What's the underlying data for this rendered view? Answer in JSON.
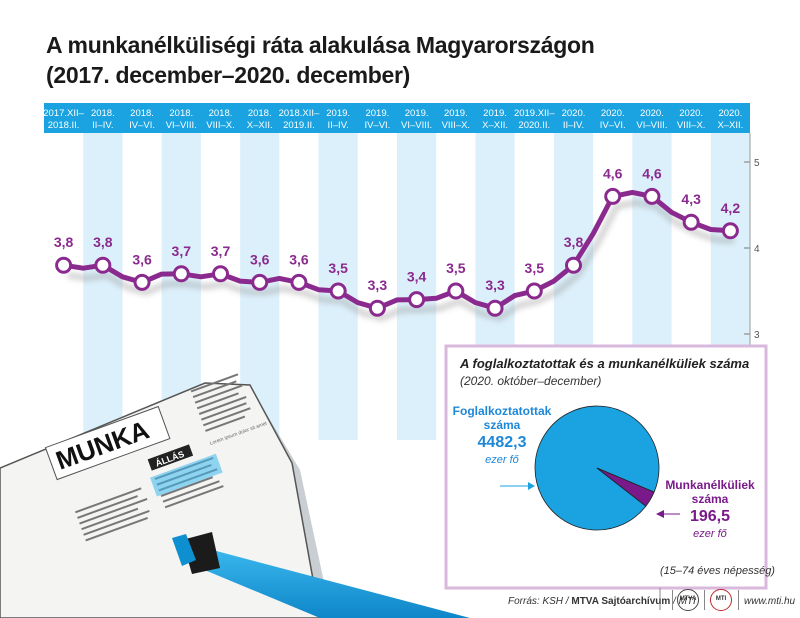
{
  "title_line1": "A munkanélküliségi ráta alakulása Magyarországon",
  "title_line2": "(2017. december–2020. december)",
  "chart_data": {
    "type": "line",
    "categories": [
      [
        "2017.XII–",
        "2018.II."
      ],
      [
        "2018.",
        "II–IV."
      ],
      [
        "2018.",
        "IV–VI."
      ],
      [
        "2018.",
        "VI–VIII."
      ],
      [
        "2018.",
        "VIII–X."
      ],
      [
        "2018.",
        "X–XII."
      ],
      [
        "2018.XII–",
        "2019.II."
      ],
      [
        "2019.",
        "II–IV."
      ],
      [
        "2019.",
        "IV–VI."
      ],
      [
        "2019.",
        "VI–VIII."
      ],
      [
        "2019.",
        "VIII–X."
      ],
      [
        "2019.",
        "X–XII."
      ],
      [
        "2019.XII–",
        "2020.II."
      ],
      [
        "2020.",
        "II–IV."
      ],
      [
        "2020.",
        "IV–VI."
      ],
      [
        "2020.",
        "VI–VIII."
      ],
      [
        "2020.",
        "VIII–X."
      ],
      [
        "2020.",
        "X–XII."
      ]
    ],
    "values": [
      3.8,
      3.8,
      3.6,
      3.7,
      3.7,
      3.6,
      3.6,
      3.5,
      3.3,
      3.4,
      3.5,
      3.3,
      3.5,
      3.8,
      4.6,
      4.6,
      4.3,
      4.2
    ],
    "value_labels": [
      "3,8",
      "3,8",
      "3,6",
      "3,7",
      "3,7",
      "3,6",
      "3,6",
      "3,5",
      "3,3",
      "3,4",
      "3,5",
      "3,3",
      "3,5",
      "3,8",
      "4,6",
      "4,6",
      "4,3",
      "4,2"
    ],
    "y_ticks": [
      "5",
      "4",
      "3"
    ],
    "y_tick_values": [
      5,
      4,
      3
    ],
    "ylim": [
      2.4,
      5.1
    ],
    "line_color": "#8b2a8e",
    "band_color": "#1aa3e0",
    "stripe_color": "#dcf0fb"
  },
  "inset": {
    "title": "A foglalkoztatottak és a munkanélküliek száma",
    "subtitle": "(2020. október–december)",
    "chart_data": {
      "type": "pie",
      "slices": [
        {
          "label_line1": "Foglalkoztatottak",
          "label_line2": "száma",
          "value": 4482.3,
          "value_label": "4482,3",
          "unit": "ezer fő",
          "color": "#1aa3e0"
        },
        {
          "label_line1": "Munkanélküliek",
          "label_line2": "száma",
          "value": 196.5,
          "value_label": "196,5",
          "unit": "ezer fő",
          "color": "#7a1a8a"
        }
      ]
    },
    "border_color": "#d8b8dc"
  },
  "population_note": "(15–74 éves népesség)",
  "newspaper": {
    "headline": "MUNKA",
    "section": "ÁLLÁS",
    "body_text": "Lorem ipsum dolor sit amet"
  },
  "footer": {
    "source_prefix": "Forrás: KSH / ",
    "source_bold": "MTVA Sajtóarchívum",
    "source_suffix": " / MTI",
    "logo1": "MTVA",
    "logo2": "MTI",
    "url": "www.mti.hu"
  }
}
